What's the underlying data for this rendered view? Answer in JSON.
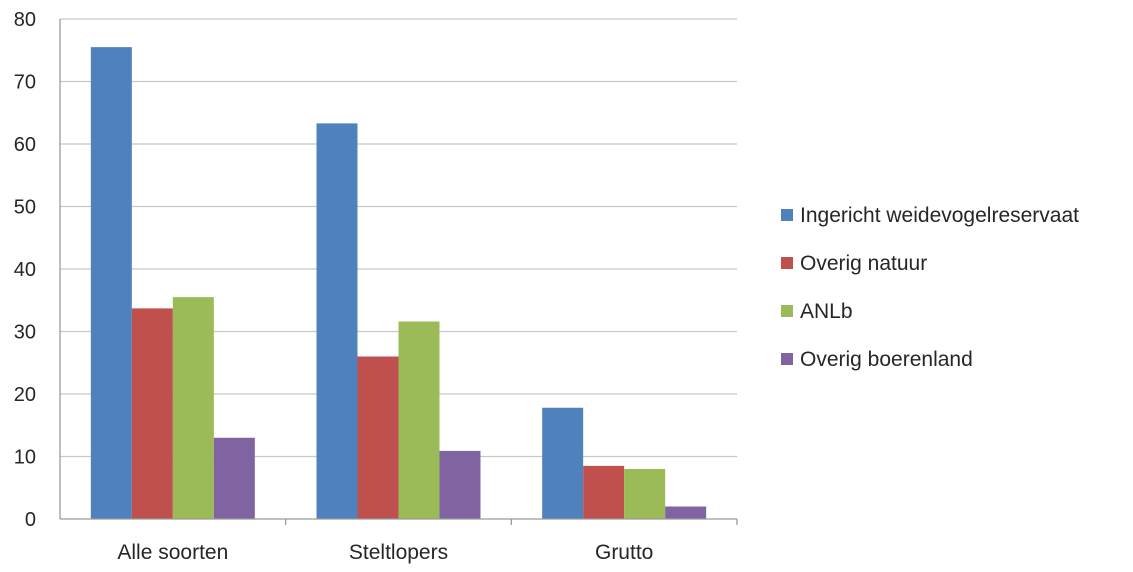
{
  "chart_data": {
    "type": "bar",
    "categories": [
      "Alle soorten",
      "Steltlopers",
      "Grutto"
    ],
    "series": [
      {
        "name": "Ingericht weidevogelreservaat",
        "color": "#4F81BD",
        "values": [
          75.5,
          63.3,
          17.8
        ]
      },
      {
        "name": "Overig natuur",
        "color": "#C0504D",
        "values": [
          33.7,
          26.0,
          8.5
        ]
      },
      {
        "name": "ANLb",
        "color": "#9BBB59",
        "values": [
          35.5,
          31.6,
          8.0
        ]
      },
      {
        "name": "Overig boerenland",
        "color": "#8064A2",
        "values": [
          13.0,
          10.9,
          2.0
        ]
      }
    ],
    "ylim": [
      0,
      80
    ],
    "yticks": [
      0,
      10,
      20,
      30,
      40,
      50,
      60,
      70,
      80
    ],
    "grid": true,
    "legend_position": "right"
  }
}
